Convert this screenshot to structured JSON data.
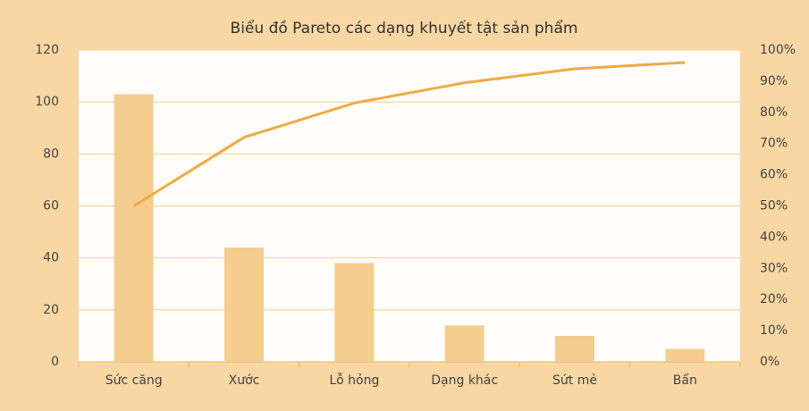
{
  "chart_data": {
    "type": "pareto",
    "title": "Biểu đồ Pareto các dạng khuyết tật sản phẩm",
    "categories": [
      "Sức căng",
      "Xước",
      "Lỗ hỏng",
      "Dạng khác",
      "Sứt mẻ",
      "Bẩn"
    ],
    "series": [
      {
        "type": "bar",
        "color": "#f5cd8e",
        "values": [
          103,
          44,
          38,
          14,
          10,
          5
        ]
      },
      {
        "type": "line",
        "axis": "y2",
        "color": "#f0ab42",
        "values": [
          50,
          72,
          83,
          89.5,
          94,
          96
        ]
      }
    ],
    "ylim": [
      0,
      120
    ],
    "yticks": [
      0,
      20,
      40,
      60,
      80,
      100,
      120
    ],
    "y2lim": [
      0,
      100
    ],
    "y2ticks": [
      {
        "value": 0,
        "label": "0%"
      },
      {
        "value": 10,
        "label": "10%"
      },
      {
        "value": 20,
        "label": "20%"
      },
      {
        "value": 30,
        "label": "30%"
      },
      {
        "value": 40,
        "label": "40%"
      },
      {
        "value": 50,
        "label": "50%"
      },
      {
        "value": 60,
        "label": "60%"
      },
      {
        "value": 70,
        "label": "70%"
      },
      {
        "value": 80,
        "label": "80%"
      },
      {
        "value": 90,
        "label": "90%"
      },
      {
        "value": 100,
        "label": "100%"
      }
    ],
    "grid": true
  }
}
